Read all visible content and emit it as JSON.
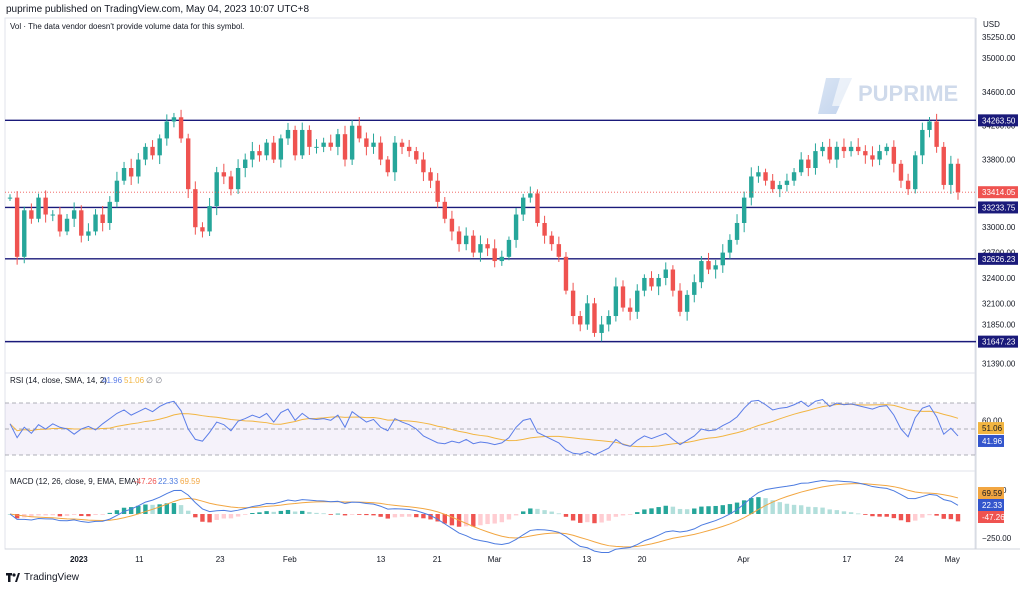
{
  "header": {
    "text": "puprime published on TradingView.com, May 04, 2023 10:07 UTC+8"
  },
  "vol_notice": "Vol · The data vendor doesn't provide volume data for this symbol.",
  "currency": "USD",
  "watermark": "PUPRIME",
  "footer": {
    "brand": "TradingView"
  },
  "colors": {
    "up": "#26a69a",
    "down": "#ef5350",
    "level": "#1a1a7a",
    "rsi": "#5b7de8",
    "rsi_ma": "#f2b541",
    "macd": "#4c7be0",
    "signal": "#f2a641"
  },
  "chart_data": [
    {
      "type": "candlestick",
      "title": "",
      "y_axis_ticks": [
        35250,
        35000,
        34600,
        34200,
        33800,
        33400,
        33000,
        32700,
        32400,
        32100,
        31850,
        31390
      ],
      "ylim": [
        31300,
        35450
      ],
      "x_axis_ticks": [
        "2023",
        "11",
        "23",
        "Feb",
        "13",
        "21",
        "Mar",
        "13",
        "20",
        "Apr",
        "17",
        "24",
        "May"
      ],
      "levels": [
        {
          "label": "34263.50",
          "value": 34263.5
        },
        {
          "label": "33233.75",
          "value": 33233.75
        },
        {
          "label": "32626.23",
          "value": 32626.23
        },
        {
          "label": "31647.23",
          "value": 31647.23
        }
      ],
      "last_price": {
        "label": "33414.05",
        "value": 33414.05
      },
      "close_series": [
        33350,
        32650,
        33200,
        33100,
        33350,
        33150,
        33150,
        32950,
        33100,
        33200,
        32900,
        32950,
        33150,
        33050,
        33300,
        33550,
        33700,
        33600,
        33800,
        33950,
        33850,
        34050,
        34250,
        34300,
        34050,
        33450,
        33000,
        32950,
        33250,
        33650,
        33600,
        33450,
        33700,
        33800,
        33900,
        33850,
        34000,
        33800,
        34050,
        34150,
        33850,
        34150,
        33950,
        33950,
        34000,
        33950,
        34100,
        33800,
        34200,
        34050,
        33950,
        34000,
        33800,
        33650,
        34000,
        33950,
        33900,
        33800,
        33650,
        33550,
        33300,
        33100,
        32950,
        32800,
        32900,
        32700,
        32800,
        32750,
        32600,
        32650,
        32850,
        33150,
        33350,
        33400,
        33050,
        32900,
        32800,
        32650,
        32250,
        31950,
        31850,
        32100,
        31750,
        31850,
        31950,
        32300,
        32050,
        32000,
        32250,
        32400,
        32300,
        32400,
        32500,
        32250,
        32000,
        32200,
        32350,
        32600,
        32500,
        32550,
        32700,
        32850,
        33050,
        33350,
        33600,
        33650,
        33550,
        33450,
        33500,
        33550,
        33650,
        33800,
        33700,
        33900,
        33950,
        33800,
        33950,
        33900,
        33950,
        33900,
        33850,
        33800,
        33900,
        33950,
        33750,
        33550,
        33450,
        33850,
        34150,
        34250,
        33950,
        33500,
        33750,
        33414.05
      ]
    },
    {
      "type": "line",
      "title": "RSI (14, close, SMA, 14, 2)",
      "series": [
        {
          "name": "RSI",
          "last": "41.96",
          "values": [
            56,
            40,
            52,
            45,
            55,
            50,
            56,
            52,
            50,
            44,
            50,
            53,
            49,
            56,
            62,
            68,
            72,
            66,
            70,
            74,
            70,
            76,
            80,
            82,
            71,
            50,
            38,
            36,
            46,
            58,
            55,
            48,
            59,
            62,
            66,
            63,
            68,
            58,
            69,
            73,
            60,
            68,
            62,
            61,
            62,
            60,
            66,
            52,
            70,
            64,
            58,
            61,
            52,
            48,
            62,
            58,
            55,
            50,
            42,
            38,
            34,
            33,
            36,
            34,
            38,
            33,
            35,
            34,
            32,
            34,
            40,
            52,
            60,
            62,
            46,
            42,
            38,
            34,
            26,
            22,
            21,
            24,
            20,
            24,
            28,
            38,
            32,
            30,
            37,
            42,
            39,
            42,
            45,
            38,
            32,
            37,
            42,
            50,
            48,
            49,
            54,
            58,
            64,
            74,
            82,
            83,
            78,
            72,
            74,
            75,
            78,
            82,
            76,
            82,
            84,
            76,
            80,
            78,
            79,
            77,
            75,
            73,
            76,
            77,
            66,
            50,
            41,
            63,
            74,
            77,
            64,
            44,
            51,
            41.96
          ]
        },
        {
          "name": "RSI-based MA",
          "last": "51.06",
          "values": []
        }
      ],
      "ylim": [
        0,
        100
      ],
      "y_axis_ticks": [
        60
      ],
      "bands": [
        30,
        50,
        70
      ]
    },
    {
      "type": "bar+line",
      "title": "MACD (12, 26, close, 9, EMA, EMA)",
      "series": [
        {
          "name": "Histogram",
          "last": "-47.26"
        },
        {
          "name": "MACD",
          "last": "22.33"
        },
        {
          "name": "Signal",
          "last": "69.59"
        }
      ],
      "y_axis_ticks": [
        250,
        -250
      ],
      "ylim": [
        -330,
        330
      ]
    }
  ]
}
